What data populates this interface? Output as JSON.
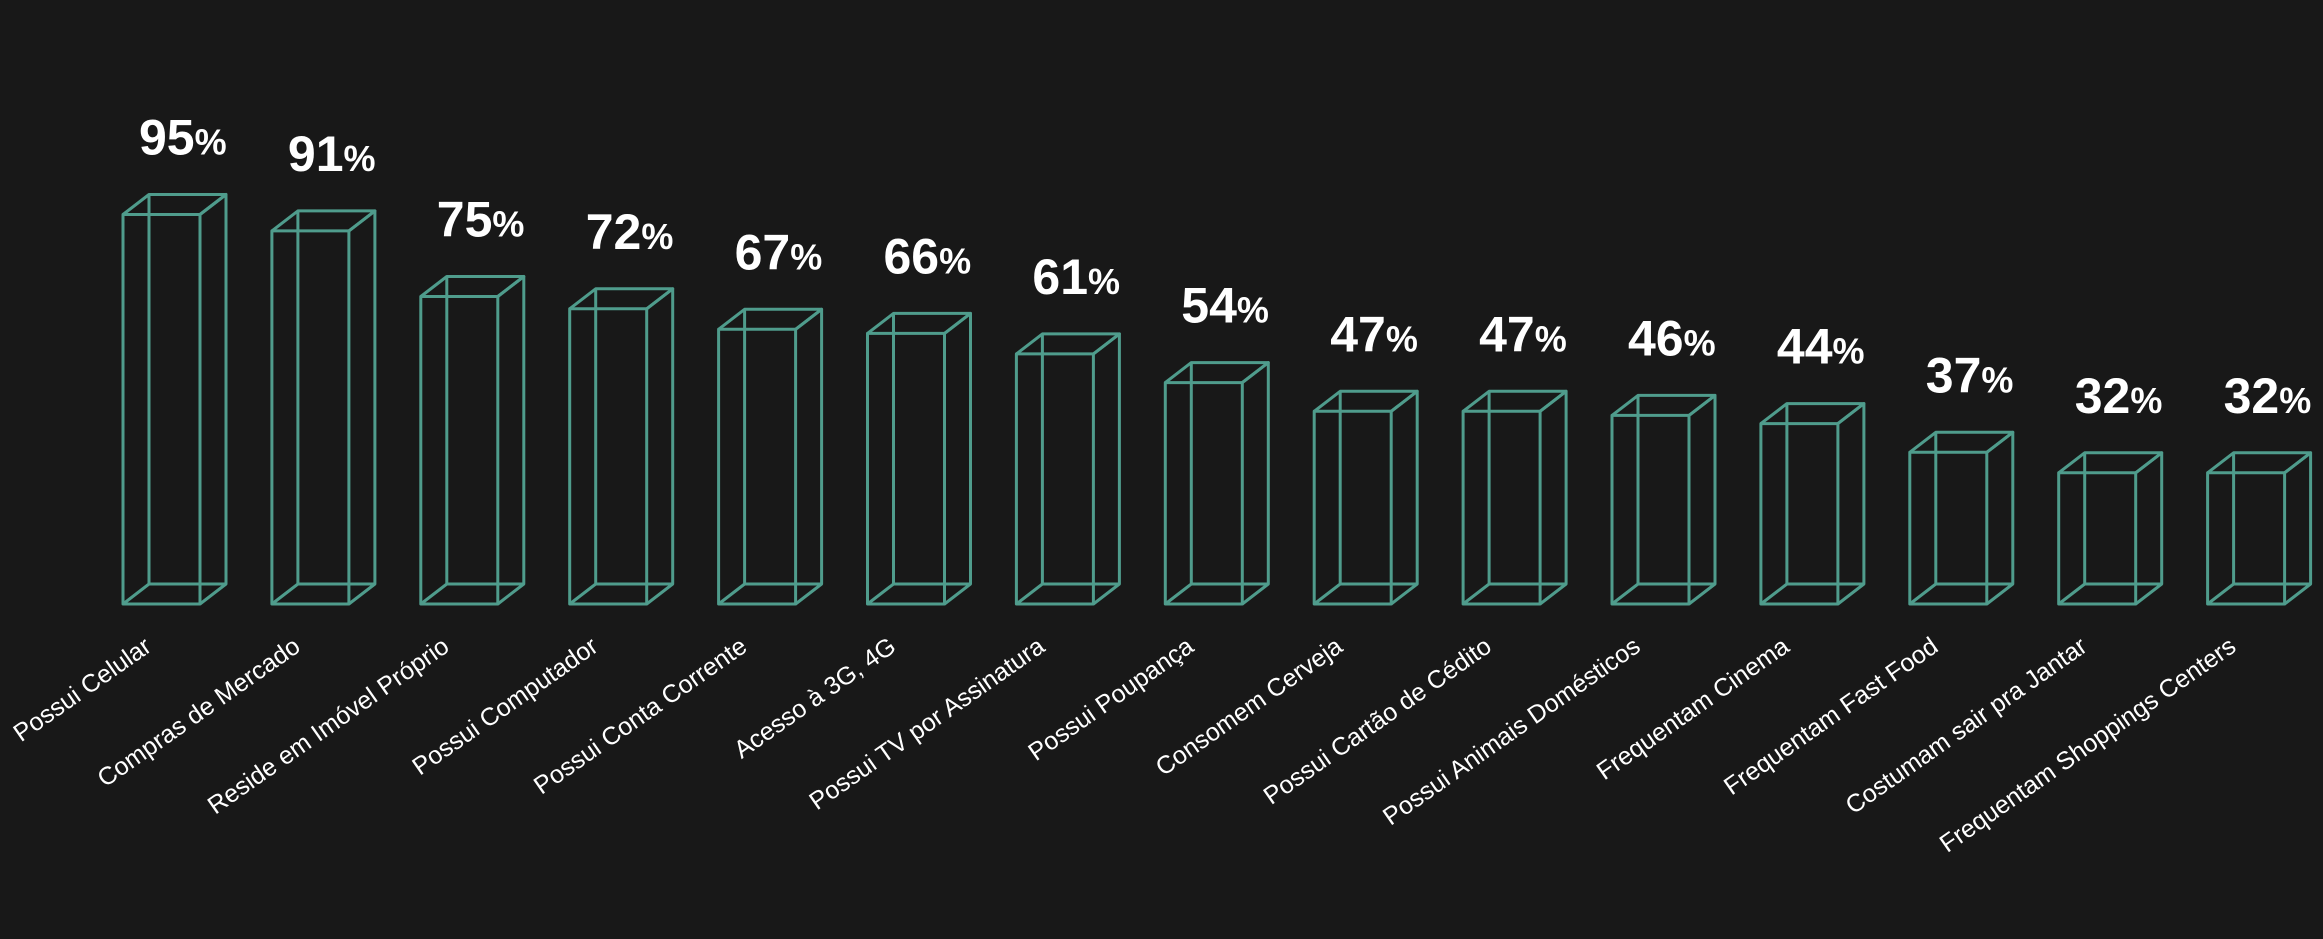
{
  "chart_data": {
    "type": "bar",
    "title": "",
    "xlabel": "",
    "ylabel": "",
    "ylim": [
      0,
      100
    ],
    "grid": false,
    "legend": "none",
    "value_suffix": "%",
    "bar_color": "#4f9c8c",
    "background_color": "#181818",
    "text_color": "#ffffff",
    "categories": [
      "Possui Celular",
      "Compras de Mercado",
      "Reside em Imóvel Próprio",
      "Possui Computador",
      "Possui Conta Corrente",
      "Acesso à 3G, 4G",
      "Possui TV por Assinatura",
      "Possui Poupança",
      "Consomem Cerveja",
      "Possui Cartão de Cédito",
      "Possui Animais Domésticos",
      "Frequentam Cinema",
      "Frequentam  Fast Food",
      "Costumam sair pra Jantar",
      "Frequentam Shoppings Centers"
    ],
    "values": [
      95,
      91,
      75,
      72,
      67,
      66,
      61,
      54,
      47,
      47,
      46,
      44,
      37,
      32,
      32
    ]
  }
}
